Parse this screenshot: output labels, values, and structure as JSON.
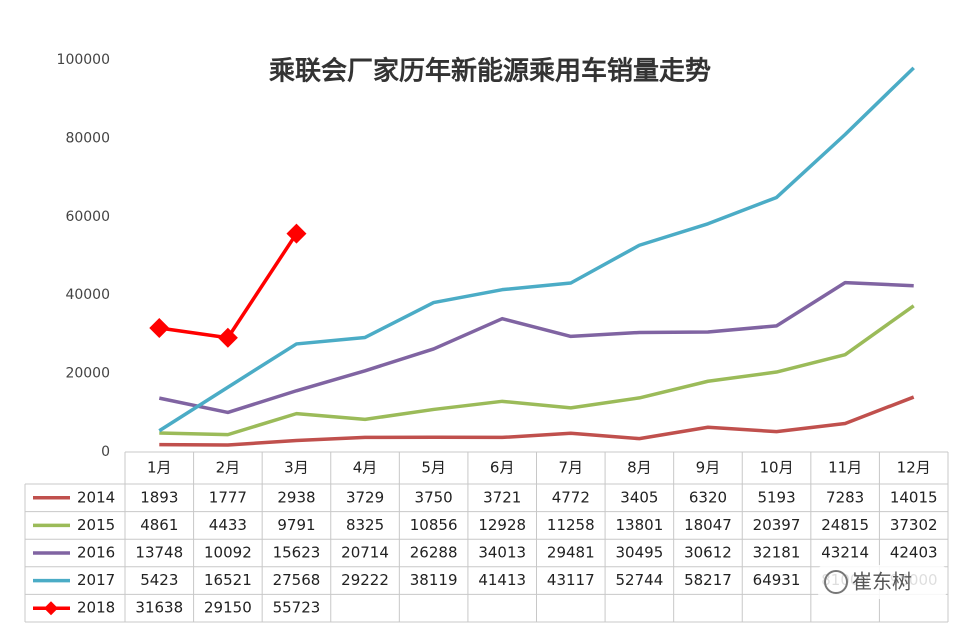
{
  "chart_data": {
    "type": "line",
    "title": "乘联会厂家历年新能源乘用车销量走势",
    "categories": [
      "1月",
      "2月",
      "3月",
      "4月",
      "5月",
      "6月",
      "7月",
      "8月",
      "9月",
      "10月",
      "11月",
      "12月"
    ],
    "series": [
      {
        "name": "2014",
        "color": "#c0504d",
        "values": [
          1893,
          1777,
          2938,
          3729,
          3750,
          3721,
          4772,
          3405,
          6320,
          5193,
          7283,
          14015
        ]
      },
      {
        "name": "2015",
        "color": "#9bbb59",
        "values": [
          4861,
          4433,
          9791,
          8325,
          10856,
          12928,
          11258,
          13801,
          18047,
          20397,
          24815,
          37302
        ]
      },
      {
        "name": "2016",
        "color": "#8064a2",
        "values": [
          13748,
          10092,
          15623,
          20714,
          26288,
          34013,
          29481,
          30495,
          30612,
          32181,
          43214,
          42403
        ]
      },
      {
        "name": "2017",
        "color": "#4bacc6",
        "values": [
          5423,
          16521,
          27568,
          29222,
          38119,
          41413,
          43117,
          52744,
          58217,
          64931,
          81000,
          98000
        ]
      },
      {
        "name": "2018",
        "color": "#ff0000",
        "marker": "diamond",
        "values": [
          31638,
          29150,
          55723,
          null,
          null,
          null,
          null,
          null,
          null,
          null,
          null,
          null
        ]
      }
    ],
    "ylim": [
      0,
      100000
    ],
    "yticks": [
      0,
      20000,
      40000,
      60000,
      80000,
      100000
    ],
    "grid": false,
    "watermark": "崔东树"
  }
}
